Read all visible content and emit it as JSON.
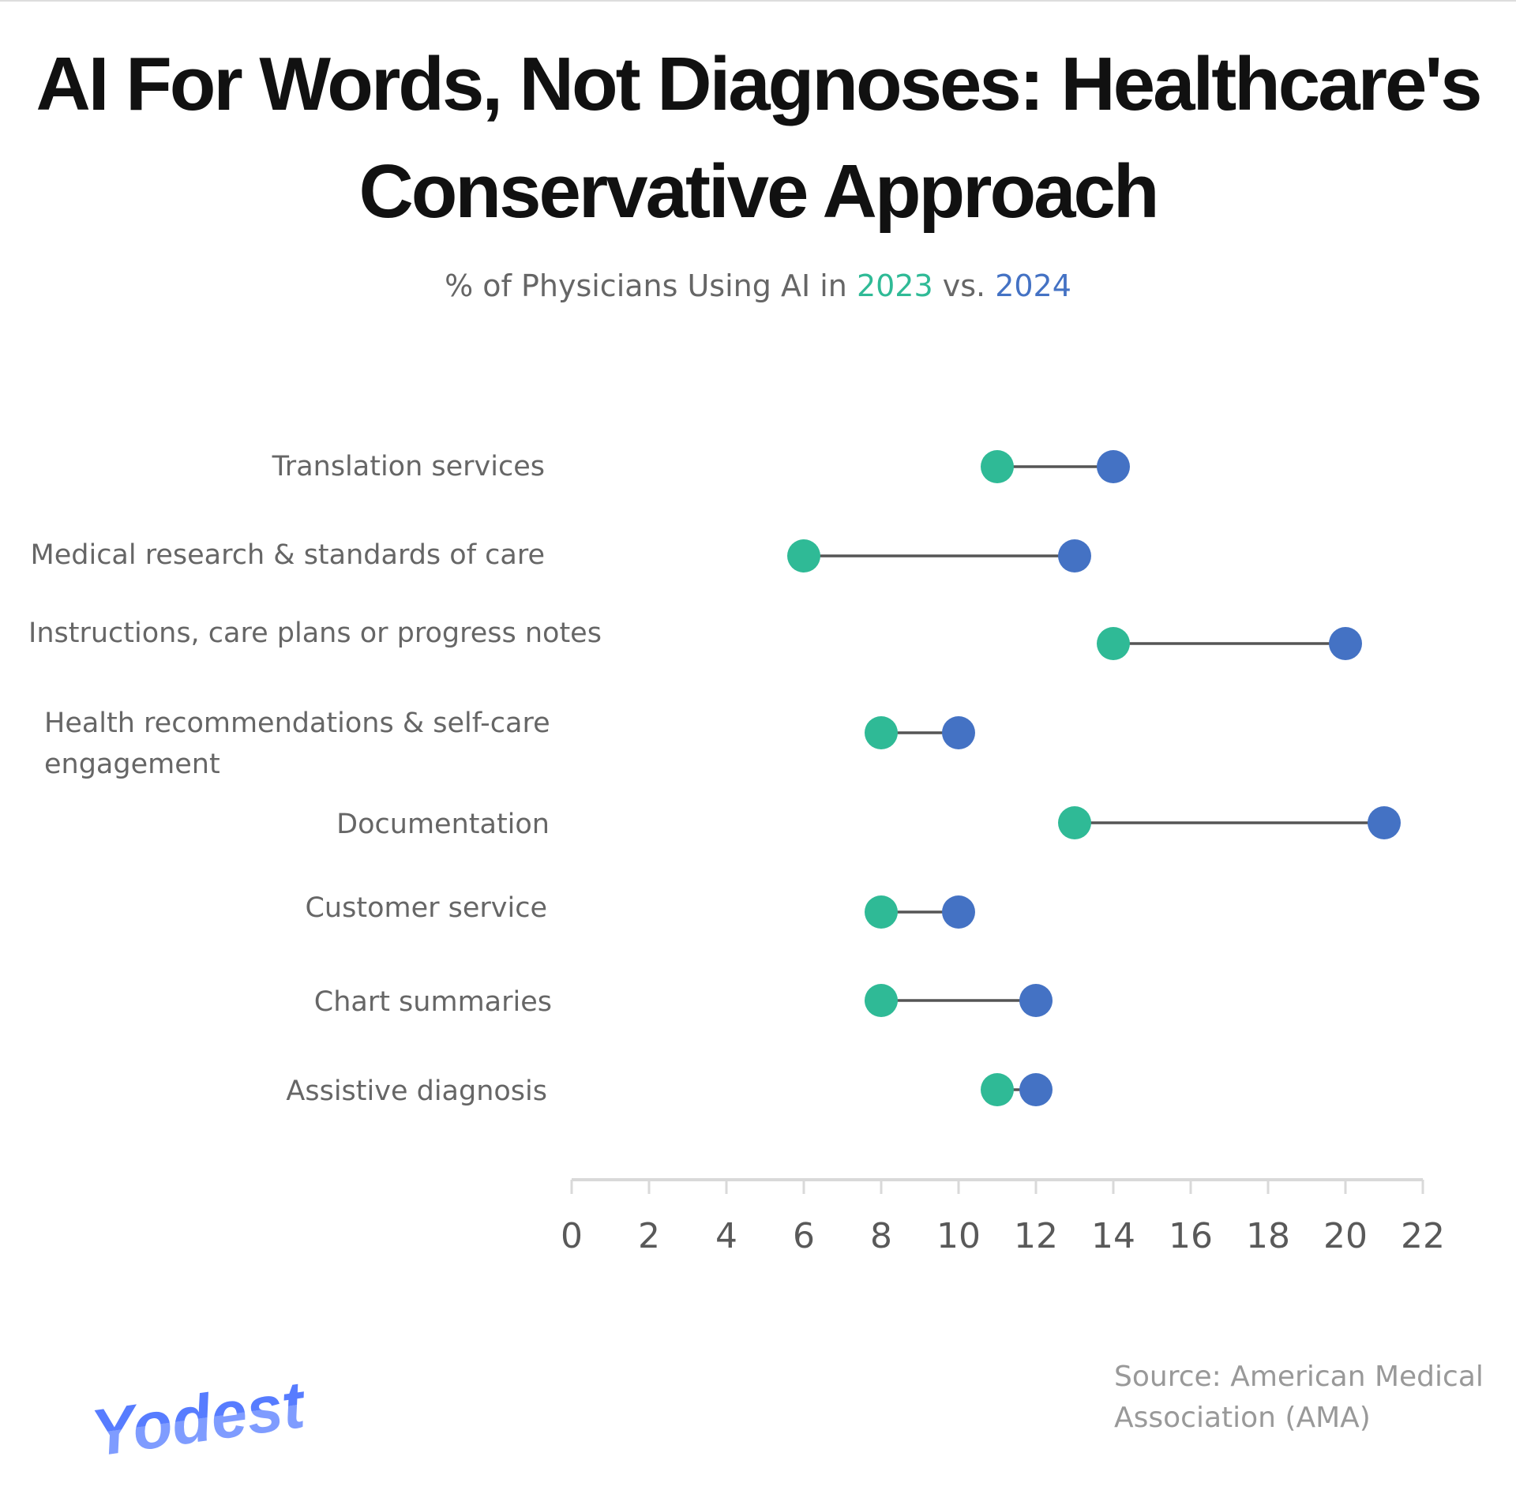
{
  "title_line1": "AI For Words, Not Diagnoses: Healthcare's",
  "title_line2": "Conservative Approach",
  "subtitle": {
    "prefix": "% of Physicians Using AI in ",
    "year1": "2023",
    "mid": " vs. ",
    "year2": "2024"
  },
  "source_line1": "Source: American Medical",
  "source_line2": "Association (AMA)",
  "logo_text": "Yodest",
  "colors": {
    "2023": "#2fba96",
    "2024": "#4472c4",
    "connector": "#555555",
    "axis": "#d9d9d9"
  },
  "chart_data": {
    "type": "dumbbell",
    "categories": [
      "Translation services",
      "Medical research & standards of care",
      "Instructions, care plans or progress notes",
      "Health recommendations & self-care engagement",
      "Documentation",
      "Customer service",
      "Chart summaries",
      "Assistive diagnosis"
    ],
    "series": [
      {
        "name": "2023",
        "values": [
          11,
          6,
          14,
          8,
          13,
          8,
          8,
          11
        ]
      },
      {
        "name": "2024",
        "values": [
          14,
          13,
          20,
          10,
          21,
          10,
          12,
          12
        ]
      }
    ],
    "xlim": [
      0,
      22
    ],
    "xticks": [
      "0",
      "2",
      "4",
      "6",
      "8",
      "10",
      "12",
      "14",
      "16",
      "18",
      "20",
      "22"
    ],
    "grid": false
  }
}
